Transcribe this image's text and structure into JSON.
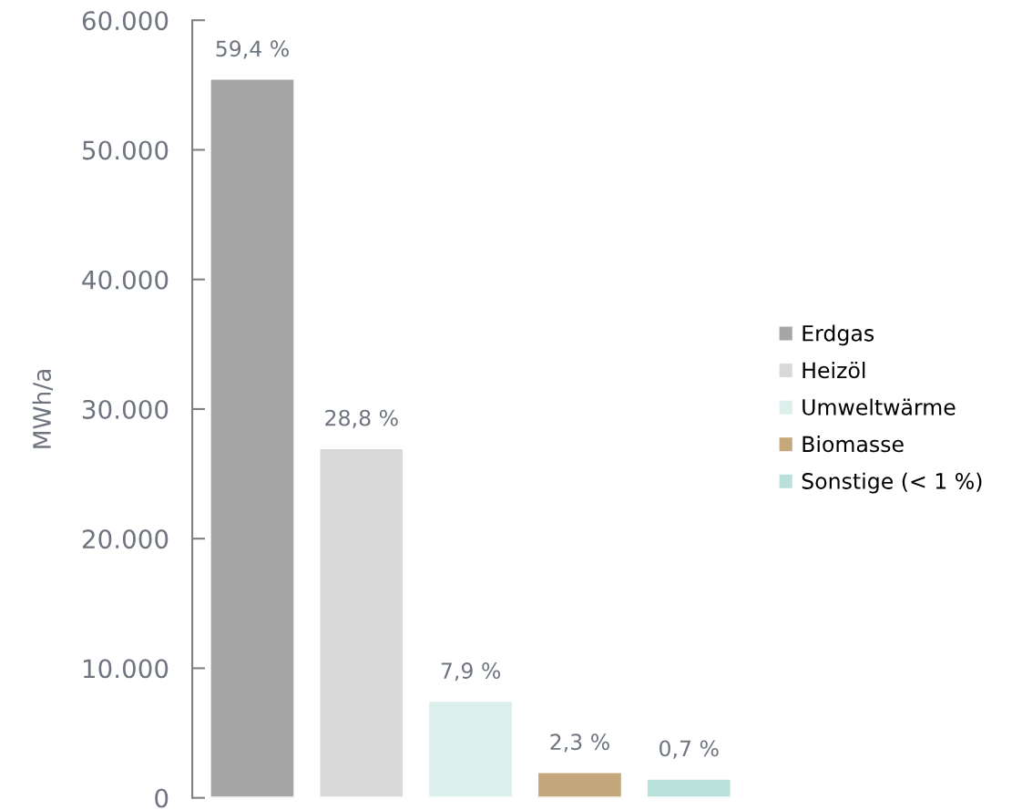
{
  "chart_data": {
    "type": "bar",
    "ylabel": "MWh/a",
    "stacked": true,
    "categories": [
      null,
      null,
      null,
      null,
      null
    ],
    "series": [
      {
        "name": "Erdgas",
        "color": "#a6a6a6",
        "values": [
          55500,
          0,
          0,
          0,
          0
        ]
      },
      {
        "name": "Heizöl",
        "color": "#d9d9d9",
        "values": [
          0,
          27000,
          0,
          0,
          0
        ]
      },
      {
        "name": "Umweltwärme",
        "color": "#dbefec",
        "values": [
          0,
          0,
          7500,
          0,
          0
        ]
      },
      {
        "name": "Biomasse",
        "color": "#c5a77c",
        "values": [
          0,
          0,
          0,
          2000,
          0
        ]
      },
      {
        "name": "Sonstige (< 1 %)",
        "color": "#b9e1d9",
        "values": [
          0,
          0,
          0,
          0,
          1500
        ]
      }
    ],
    "annotations": [
      {
        "text": "59,4 %",
        "y": 55500
      },
      {
        "text": "28,8 %",
        "y": 27000
      },
      {
        "text": "7,9 %",
        "y": 7500
      },
      {
        "text": "2,3 %",
        "y": 2000
      },
      {
        "text": "0,7 %",
        "y": 1500
      }
    ],
    "ylim": [
      0,
      60000
    ],
    "yticks": [
      {
        "value": 0,
        "label": "0"
      },
      {
        "value": 10000,
        "label": "10.000"
      },
      {
        "value": 20000,
        "label": "20.000"
      },
      {
        "value": 30000,
        "label": "30.000"
      },
      {
        "value": 40000,
        "label": "40.000"
      },
      {
        "value": 50000,
        "label": "50.000"
      },
      {
        "value": 60000,
        "label": "60.000"
      }
    ],
    "grid": false,
    "legend": "right"
  }
}
